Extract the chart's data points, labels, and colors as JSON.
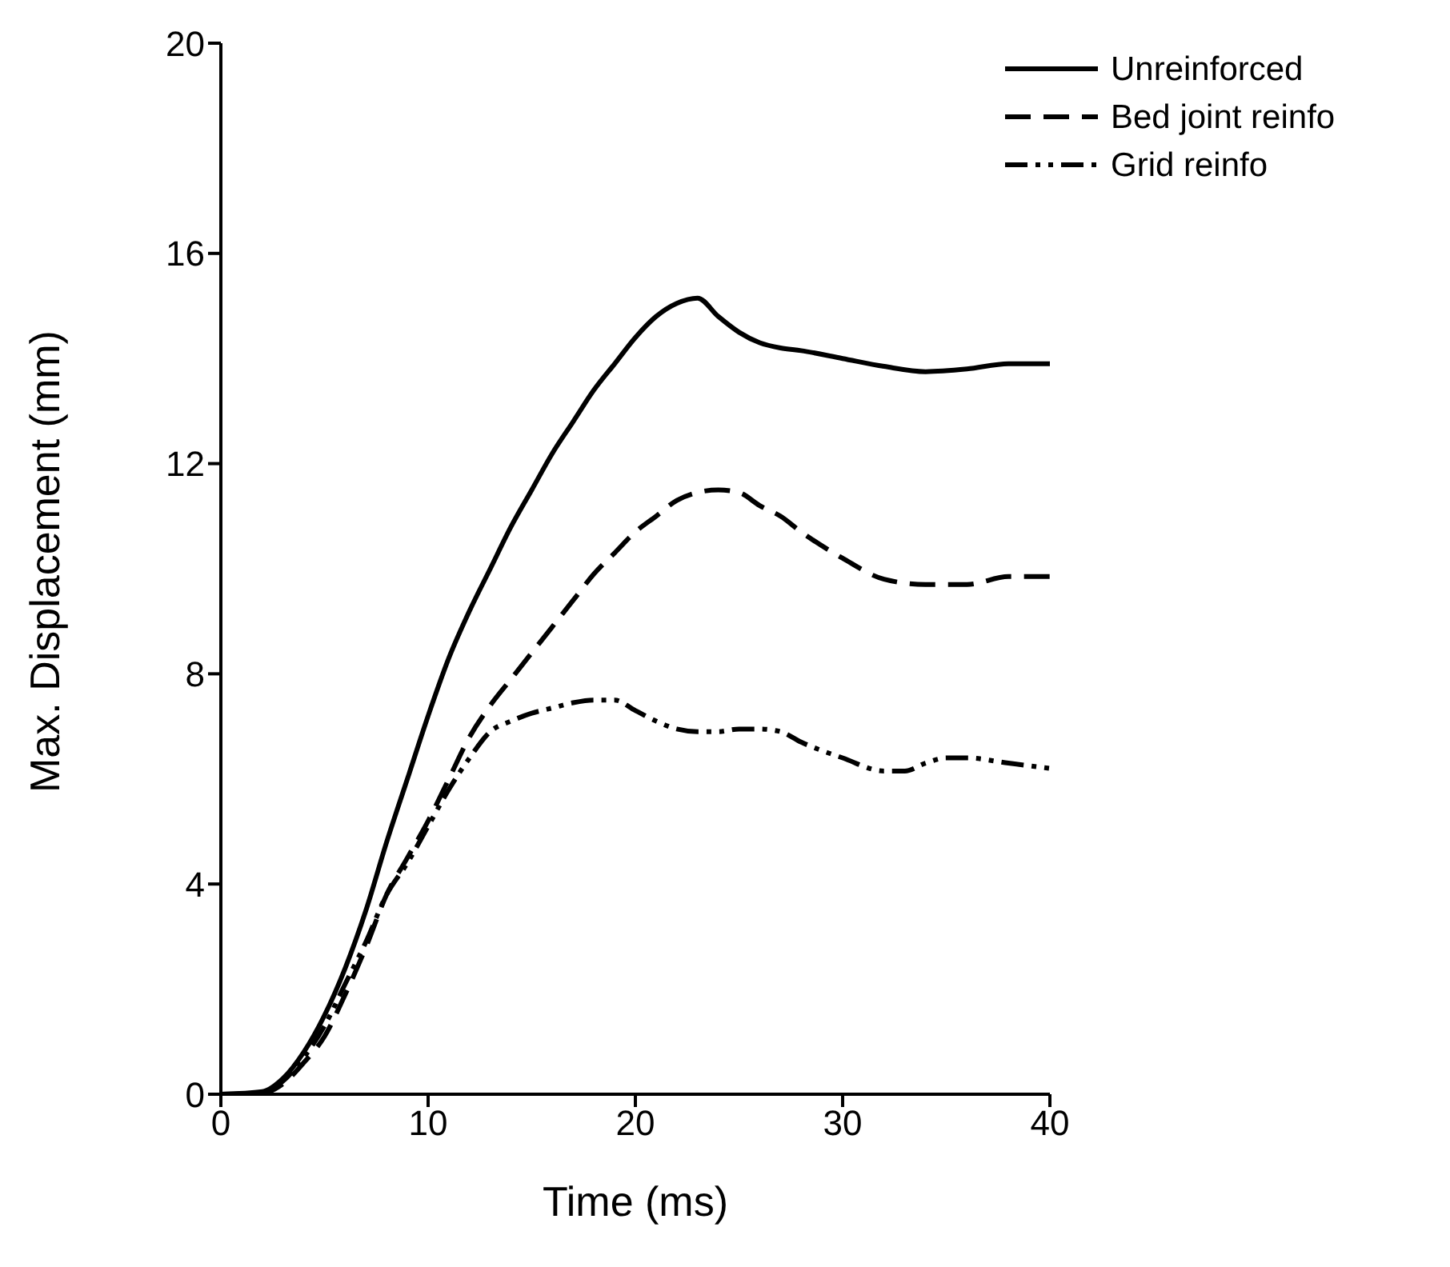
{
  "chart_data": {
    "type": "line",
    "xlabel": "Time (ms)",
    "ylabel": "Max. Displacement (mm)",
    "xlim": [
      0,
      40
    ],
    "xticks": [
      0,
      10,
      20,
      30,
      40
    ],
    "ylim": [
      0,
      20
    ],
    "yticks": [
      0,
      4,
      8,
      12,
      16,
      20
    ],
    "grid": false,
    "legend": "top right",
    "marker": "none",
    "series": [
      {
        "name": "Unreinforced",
        "color": "#000000",
        "line_style": "solid",
        "x": [
          0,
          2,
          3,
          4,
          5,
          6,
          7,
          8,
          9,
          10,
          11,
          12,
          13,
          14,
          15,
          16,
          17,
          18,
          19,
          20,
          21,
          22,
          23,
          24,
          25,
          26,
          27,
          28,
          30,
          32,
          34,
          36,
          38,
          40
        ],
        "values": [
          0,
          0.05,
          0.3,
          0.8,
          1.5,
          2.4,
          3.5,
          4.8,
          6.0,
          7.2,
          8.3,
          9.2,
          10.0,
          10.8,
          11.5,
          12.2,
          12.8,
          13.4,
          13.9,
          14.4,
          14.8,
          15.05,
          15.15,
          14.8,
          14.5,
          14.3,
          14.2,
          14.15,
          14.0,
          13.85,
          13.75,
          13.8,
          13.9,
          13.9
        ]
      },
      {
        "name": "Bed joint reinfo",
        "color": "#000000",
        "line_style": "dashed",
        "x": [
          0,
          2,
          3,
          4,
          5,
          6,
          7,
          8,
          9,
          10,
          11,
          12,
          13,
          14,
          15,
          16,
          17,
          18,
          19,
          20,
          21,
          22,
          23,
          24,
          25,
          26,
          27,
          28,
          30,
          32,
          34,
          36,
          38,
          40
        ],
        "values": [
          0,
          0.02,
          0.2,
          0.6,
          1.1,
          1.9,
          2.8,
          3.8,
          4.5,
          5.2,
          6.0,
          6.8,
          7.4,
          7.9,
          8.4,
          8.9,
          9.4,
          9.9,
          10.3,
          10.7,
          11.0,
          11.3,
          11.45,
          11.5,
          11.45,
          11.2,
          11.0,
          10.7,
          10.2,
          9.8,
          9.7,
          9.7,
          9.85,
          9.85
        ]
      },
      {
        "name": "Grid reinfo",
        "color": "#000000",
        "line_style": "dotted",
        "x": [
          0,
          2,
          3,
          4,
          5,
          6,
          7,
          8,
          9,
          10,
          11,
          12,
          13,
          14,
          15,
          16,
          17,
          18,
          19,
          20,
          21,
          22,
          23,
          24,
          25,
          26,
          27,
          28,
          30,
          32,
          33,
          34,
          35,
          36,
          38,
          40
        ],
        "values": [
          0,
          0.03,
          0.25,
          0.7,
          1.3,
          2.1,
          2.9,
          3.8,
          4.4,
          5.1,
          5.8,
          6.4,
          6.9,
          7.1,
          7.25,
          7.35,
          7.45,
          7.5,
          7.5,
          7.3,
          7.1,
          6.95,
          6.9,
          6.9,
          6.95,
          6.95,
          6.9,
          6.7,
          6.4,
          6.15,
          6.15,
          6.3,
          6.4,
          6.4,
          6.3,
          6.2
        ]
      }
    ]
  }
}
